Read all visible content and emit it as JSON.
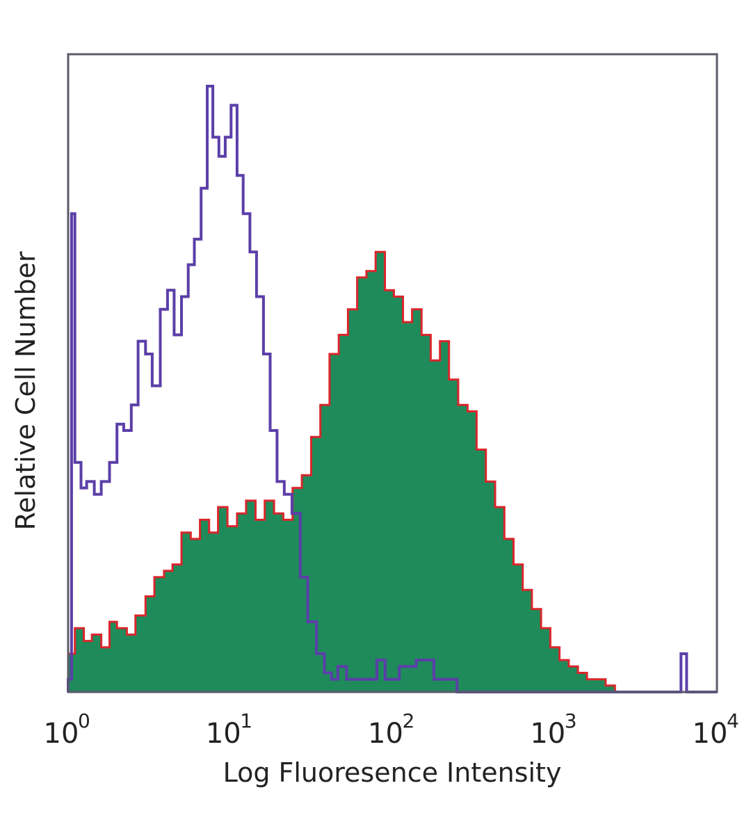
{
  "chart_data": {
    "type": "histogram",
    "title": "",
    "xlabel": "Log Fluoresence Intensity",
    "ylabel": "Relative Cell Number",
    "xscale": "log",
    "xlim": [
      1,
      10000
    ],
    "ylim": [
      0,
      1
    ],
    "y_tick_labels": false,
    "grid": false,
    "legend": "none",
    "x_ticks": [
      {
        "value": 1,
        "base": "10",
        "exp": "0"
      },
      {
        "value": 10,
        "base": "10",
        "exp": "1"
      },
      {
        "value": 100,
        "base": "10",
        "exp": "2"
      },
      {
        "value": 1000,
        "base": "10",
        "exp": "3"
      },
      {
        "value": 10000,
        "base": "10",
        "exp": "4"
      }
    ],
    "colors": {
      "isotype": "#5b3fa8",
      "stained_fill": "#1f8b5a",
      "stained_edge": "#d9262b",
      "frame": "#5a5a6a"
    },
    "series": [
      {
        "role": "isotype-control",
        "style": "line",
        "x": [
          1.0,
          1.05,
          1.1,
          1.2,
          1.3,
          1.45,
          1.6,
          1.8,
          2.0,
          2.2,
          2.45,
          2.7,
          3.0,
          3.3,
          3.7,
          4.1,
          4.5,
          5.0,
          5.5,
          6.0,
          6.6,
          7.2,
          7.8,
          8.5,
          9.3,
          10.1,
          11.0,
          12.0,
          13.2,
          14.5,
          16.0,
          17.6,
          19.4,
          21.5,
          24.0,
          27.0,
          30.0,
          34.0,
          38.0,
          42.0,
          46.0,
          52.0,
          60.0,
          70.0,
          80.0,
          90.0,
          110.0,
          140.0,
          180.0,
          250.0,
          500.0,
          1000.0,
          3000.0,
          5500.0,
          6000.0,
          6500.0,
          10000.0
        ],
        "y": [
          0.02,
          0.75,
          0.36,
          0.32,
          0.33,
          0.31,
          0.33,
          0.36,
          0.42,
          0.41,
          0.45,
          0.55,
          0.53,
          0.48,
          0.6,
          0.63,
          0.56,
          0.62,
          0.67,
          0.71,
          0.79,
          0.95,
          0.87,
          0.84,
          0.87,
          0.92,
          0.81,
          0.75,
          0.69,
          0.62,
          0.53,
          0.41,
          0.33,
          0.31,
          0.28,
          0.18,
          0.11,
          0.06,
          0.03,
          0.02,
          0.04,
          0.02,
          0.02,
          0.02,
          0.05,
          0.02,
          0.04,
          0.05,
          0.02,
          0.0,
          0.0,
          0.0,
          0.0,
          0.0,
          0.06,
          0.0,
          0.0
        ]
      },
      {
        "role": "stained",
        "style": "filled",
        "x": [
          1.0,
          1.1,
          1.25,
          1.4,
          1.6,
          1.8,
          2.0,
          2.3,
          2.6,
          3.0,
          3.4,
          3.9,
          4.4,
          5.0,
          5.7,
          6.5,
          7.4,
          8.4,
          9.6,
          11.0,
          12.5,
          14.3,
          16.3,
          18.6,
          21.2,
          24.2,
          27.6,
          31.5,
          35.9,
          40.9,
          46.6,
          53.1,
          60.5,
          69.0,
          78.7,
          89.7,
          102.0,
          116.0,
          132.0,
          151.0,
          172.0,
          196.0,
          223.0,
          254.0,
          290.0,
          330.0,
          376.0,
          429.0,
          489.0,
          557.0,
          635.0,
          723.0,
          824.0,
          939.0,
          1070.0,
          1220.0,
          1390.0,
          1580.0,
          1800.0,
          2060.0,
          2350.0,
          10000.0
        ],
        "y": [
          0.06,
          0.1,
          0.08,
          0.09,
          0.07,
          0.11,
          0.1,
          0.09,
          0.12,
          0.15,
          0.18,
          0.19,
          0.2,
          0.25,
          0.24,
          0.27,
          0.25,
          0.29,
          0.26,
          0.28,
          0.3,
          0.27,
          0.3,
          0.28,
          0.27,
          0.32,
          0.34,
          0.4,
          0.45,
          0.53,
          0.56,
          0.6,
          0.65,
          0.66,
          0.69,
          0.63,
          0.62,
          0.58,
          0.6,
          0.56,
          0.52,
          0.55,
          0.49,
          0.45,
          0.44,
          0.38,
          0.33,
          0.29,
          0.24,
          0.2,
          0.16,
          0.13,
          0.1,
          0.07,
          0.05,
          0.04,
          0.03,
          0.02,
          0.02,
          0.01,
          0.0,
          0.0
        ]
      }
    ]
  }
}
